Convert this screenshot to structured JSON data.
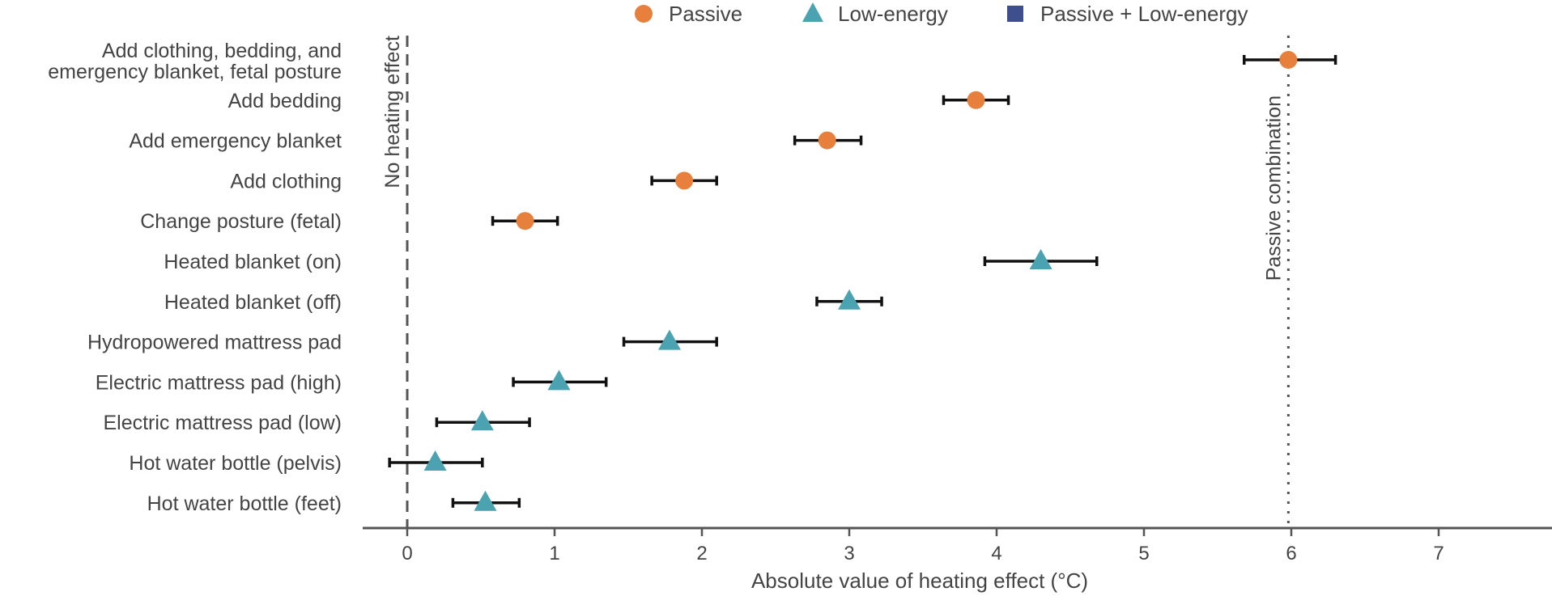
{
  "chart_data": {
    "type": "scatter",
    "subtype": "dot-plot with horizontal error bars",
    "title": "",
    "xlabel": "Absolute value of heating effect (°C)",
    "ylabel": "",
    "xlim": [
      -0.3,
      7.8
    ],
    "xticks": [
      0,
      1,
      2,
      3,
      4,
      5,
      6,
      7
    ],
    "grid": false,
    "legend": {
      "position": "top",
      "entries": [
        {
          "name": "Passive",
          "marker": "circle",
          "color": "#E8803D"
        },
        {
          "name": "Low-energy",
          "marker": "triangle",
          "color": "#4BA3B1"
        },
        {
          "name": "Passive + Low-energy",
          "marker": "square",
          "color": "#3F4E8C"
        }
      ]
    },
    "reference_lines": [
      {
        "label": "No heating effect",
        "x": 0,
        "style": "dashed"
      },
      {
        "label": "Passive combination",
        "x": 5.98,
        "style": "dotted"
      }
    ],
    "categories": [
      {
        "label_lines": [
          "Add clothing, bedding, and",
          "emergency blanket, fetal posture"
        ],
        "group": "Passive",
        "value": 5.98,
        "low": 5.68,
        "high": 6.3
      },
      {
        "label_lines": [
          "Add bedding"
        ],
        "group": "Passive",
        "value": 3.86,
        "low": 3.64,
        "high": 4.08
      },
      {
        "label_lines": [
          "Add emergency blanket"
        ],
        "group": "Passive",
        "value": 2.85,
        "low": 2.63,
        "high": 3.08
      },
      {
        "label_lines": [
          "Add clothing"
        ],
        "group": "Passive",
        "value": 1.88,
        "low": 1.66,
        "high": 2.1
      },
      {
        "label_lines": [
          "Change posture (fetal)"
        ],
        "group": "Passive",
        "value": 0.8,
        "low": 0.58,
        "high": 1.02
      },
      {
        "label_lines": [
          "Heated blanket (on)"
        ],
        "group": "Low-energy",
        "value": 4.3,
        "low": 3.92,
        "high": 4.68
      },
      {
        "label_lines": [
          "Heated blanket (off)"
        ],
        "group": "Low-energy",
        "value": 3.0,
        "low": 2.78,
        "high": 3.22
      },
      {
        "label_lines": [
          "Hydropowered mattress pad"
        ],
        "group": "Low-energy",
        "value": 1.78,
        "low": 1.47,
        "high": 2.1
      },
      {
        "label_lines": [
          "Electric mattress pad (high)"
        ],
        "group": "Low-energy",
        "value": 1.03,
        "low": 0.72,
        "high": 1.35
      },
      {
        "label_lines": [
          "Electric mattress pad (low)"
        ],
        "group": "Low-energy",
        "value": 0.51,
        "low": 0.2,
        "high": 0.83
      },
      {
        "label_lines": [
          "Hot water bottle (pelvis)"
        ],
        "group": "Low-energy",
        "value": 0.19,
        "low": -0.12,
        "high": 0.51
      },
      {
        "label_lines": [
          "Hot water bottle (feet)"
        ],
        "group": "Low-energy",
        "value": 0.53,
        "low": 0.31,
        "high": 0.76
      }
    ]
  }
}
